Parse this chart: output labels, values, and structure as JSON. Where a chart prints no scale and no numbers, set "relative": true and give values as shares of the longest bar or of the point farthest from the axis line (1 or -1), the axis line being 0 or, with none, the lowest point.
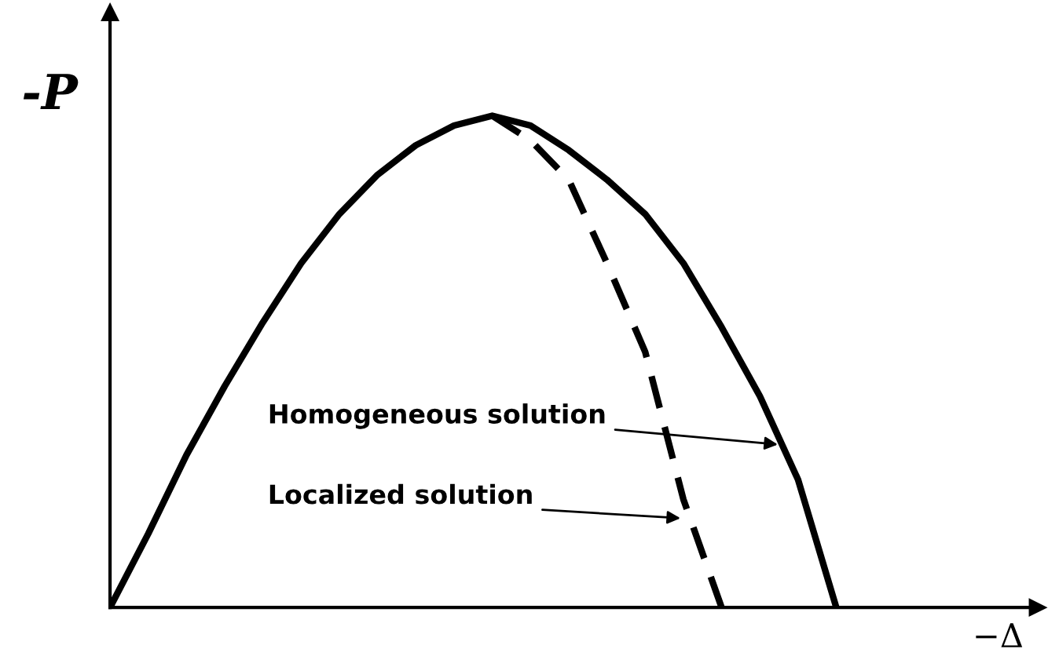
{
  "chart_data": {
    "type": "line",
    "relative": true,
    "xlabel": "−Δ",
    "ylabel": "-P",
    "legend": false,
    "grid": false,
    "marker": "none",
    "categories": [
      null,
      null,
      null,
      null,
      null,
      null,
      null,
      null,
      null,
      null,
      null,
      null,
      null,
      null,
      null,
      null,
      null,
      null,
      null,
      null,
      null,
      null,
      null,
      null
    ],
    "series": [
      {
        "color": "#000000",
        "line_style": "solid",
        "values": [
          0,
          0.15,
          0.31,
          0.45,
          0.58,
          0.7,
          0.8,
          0.88,
          0.94,
          0.98,
          1.0,
          0.98,
          0.93,
          0.87,
          0.8,
          0.7,
          0.57,
          0.43,
          0.26,
          0,
          null,
          null,
          null,
          null
        ]
      },
      {
        "color": "#000000",
        "line_style": "dashed",
        "values": [
          null,
          null,
          null,
          null,
          null,
          null,
          null,
          null,
          null,
          null,
          1.0,
          0.95,
          0.87,
          0.7,
          0.52,
          0.22,
          0,
          null,
          null,
          null,
          null,
          null,
          null,
          null
        ]
      }
    ],
    "annotations": [
      "Homogeneous solution",
      "Localized solution"
    ]
  }
}
